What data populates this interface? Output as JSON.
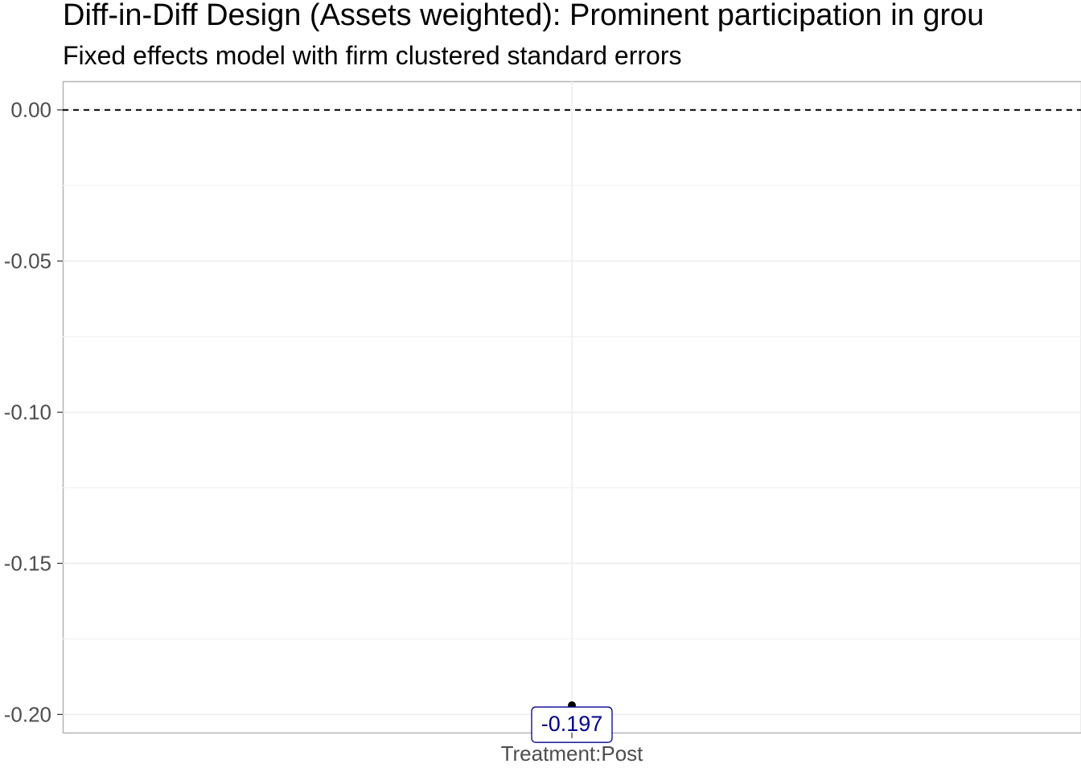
{
  "chart_data": {
    "type": "scatter",
    "title": "Diff-in-Diff Design (Assets weighted): Prominent participation in grou",
    "subtitle": "Fixed effects model with firm clustered standard errors",
    "xlabel": "",
    "ylabel": "",
    "categories": [
      "Treatment:Post"
    ],
    "points": [
      {
        "category": "Treatment:Post",
        "y": -0.197,
        "label": "-0.197"
      }
    ],
    "ylim": [
      -0.206,
      0.0095
    ],
    "yticks": [
      0.0,
      -0.05,
      -0.1,
      -0.15,
      -0.2
    ],
    "ytick_labels": [
      "0.00",
      "-0.05",
      "-0.10",
      "-0.15",
      "-0.20"
    ],
    "reference_line": {
      "y": 0,
      "style": "dashed"
    },
    "grid": true,
    "legend": "none",
    "colors": {
      "point": "#000000",
      "label_text": "#00008b",
      "label_border": "#00008b",
      "grid": "#ebebeb",
      "panel_border": "#b3b3b3",
      "reference_line": "#000000"
    }
  }
}
